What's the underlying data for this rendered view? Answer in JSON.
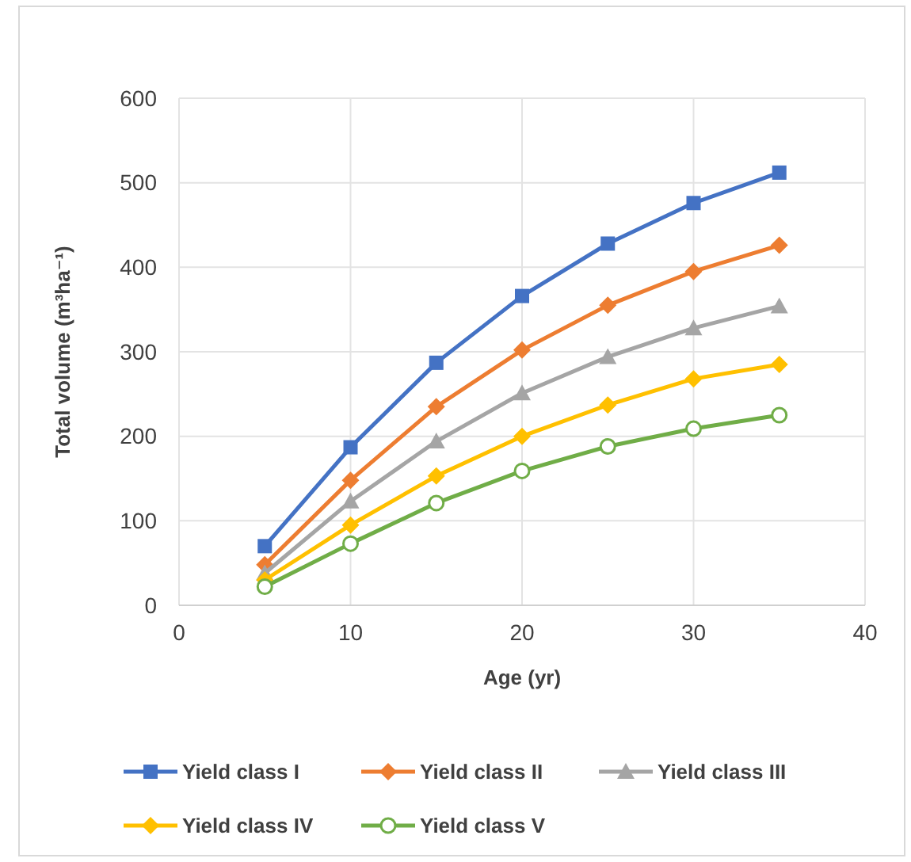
{
  "chart_data": {
    "type": "line",
    "xlabel": "Age (yr)",
    "ylabel": "Total volume (m³ha⁻¹)",
    "x": [
      5,
      10,
      15,
      20,
      25,
      30,
      35
    ],
    "xlim": [
      0,
      40
    ],
    "xticks": [
      0,
      10,
      20,
      30,
      40
    ],
    "ylim": [
      0,
      600
    ],
    "yticks": [
      0,
      100,
      200,
      300,
      400,
      500,
      600
    ],
    "grid": true,
    "legend": "bottom",
    "line_style": "solid",
    "series": [
      {
        "name": "Yield class I",
        "color": "#4472c4",
        "marker": "square",
        "values": [
          70,
          187,
          287,
          366,
          428,
          476,
          512
        ]
      },
      {
        "name": "Yield class II",
        "color": "#ed7d31",
        "marker": "diamond",
        "values": [
          48,
          148,
          235,
          302,
          355,
          395,
          426
        ]
      },
      {
        "name": "Yield class III",
        "color": "#a5a5a5",
        "marker": "triangle",
        "values": [
          38,
          123,
          194,
          251,
          294,
          328,
          354
        ]
      },
      {
        "name": "Yield class IV",
        "color": "#ffc000",
        "marker": "diamond",
        "values": [
          30,
          95,
          153,
          200,
          237,
          268,
          285
        ]
      },
      {
        "name": "Yield class V",
        "color": "#70ad47",
        "marker": "circle",
        "values": [
          22,
          73,
          121,
          159,
          188,
          209,
          225
        ]
      }
    ]
  }
}
